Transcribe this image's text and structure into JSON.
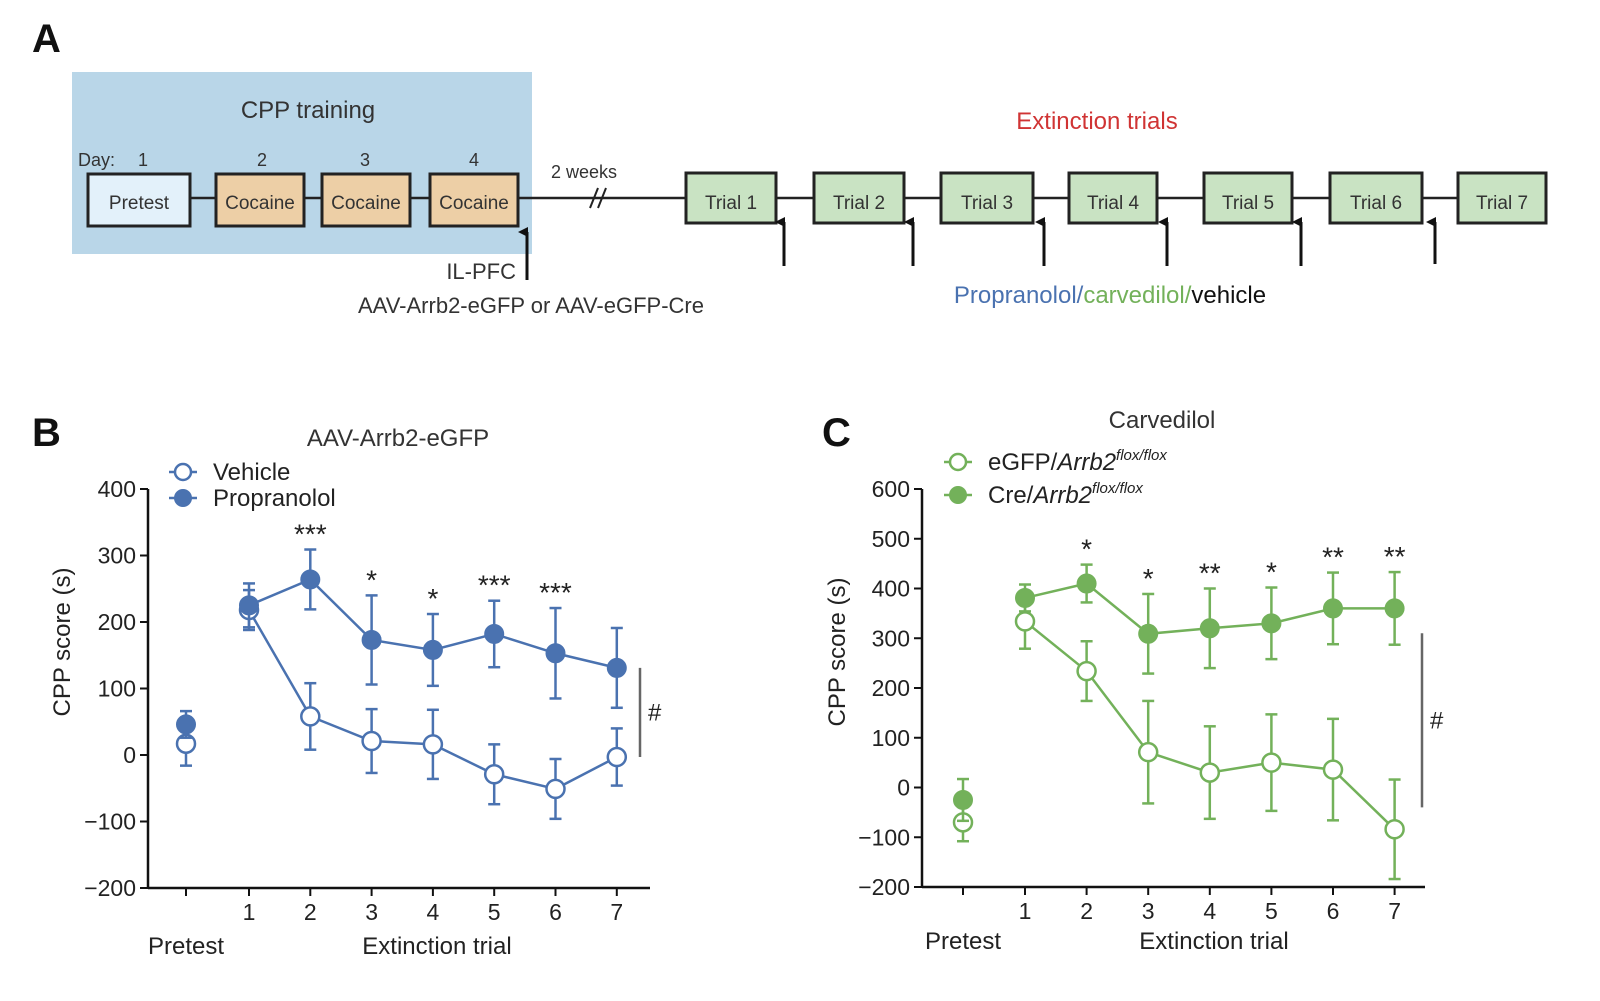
{
  "panel_a": {
    "letter": "A",
    "training_title": "CPP training",
    "day_label": "Day:",
    "days": [
      "1",
      "2",
      "3",
      "4"
    ],
    "boxes": [
      "Pretest",
      "Cocaine",
      "Cocaine",
      "Cocaine"
    ],
    "gap_label": "2 weeks",
    "injection_site": "IL-PFC",
    "injection_vectors": "AAV-Arrb2-eGFP or AAV-eGFP-Cre",
    "extinction_title": "Extinction trials",
    "trials": [
      "Trial 1",
      "Trial 2",
      "Trial 3",
      "Trial 4",
      "Trial 5",
      "Trial 6",
      "Trial 7"
    ],
    "drug_parts": [
      "Propranolol/",
      "carvedilol/",
      "vehicle"
    ],
    "colors": {
      "training_bg": "#b9d6e8",
      "pretest_fill": "#e3f1fa",
      "cocaine_fill": "#edcfa6",
      "trial_fill": "#c9e3c3",
      "extinction_title": "#d03434",
      "propranolol_text": "#4a72b0",
      "carvedilol_text": "#73b15a"
    }
  },
  "chart_data": [
    {
      "type": "line",
      "panel": "B",
      "title": "AAV-Arrb2-eGFP",
      "xlabel": "Extinction trial",
      "pretest_label": "Pretest",
      "ylabel": "CPP score (s)",
      "ylim": [
        -200,
        400
      ],
      "yticks": [
        400,
        300,
        200,
        100,
        0,
        -100,
        -200
      ],
      "ytick_labels": [
        "400",
        "300",
        "200",
        "100",
        "0",
        "−100",
        "−200"
      ],
      "x": [
        1,
        2,
        3,
        4,
        5,
        6,
        7
      ],
      "color": "#4a72b0",
      "series": [
        {
          "name": "Vehicle",
          "filled": false,
          "pretest": 17,
          "pretest_err": 33,
          "values": [
            218,
            58,
            21,
            16,
            -29,
            -51,
            -3
          ],
          "errors": [
            30,
            50,
            48,
            52,
            45,
            45,
            43
          ]
        },
        {
          "name": "Propranolol",
          "filled": true,
          "pretest": 46,
          "pretest_err": 20,
          "values": [
            225,
            264,
            173,
            158,
            182,
            153,
            131
          ],
          "errors": [
            33,
            45,
            67,
            54,
            50,
            68,
            60
          ]
        }
      ],
      "significance": [
        "",
        "***",
        "*",
        "*",
        "***",
        "***",
        ""
      ],
      "bracket_label": "#",
      "bracket_range": [
        -3,
        131
      ]
    },
    {
      "type": "line",
      "panel": "C",
      "title": "Carvedilol",
      "xlabel": "Extinction trial",
      "pretest_label": "Pretest",
      "ylabel": "CPP score (s)",
      "ylim": [
        -200,
        600
      ],
      "yticks": [
        600,
        500,
        400,
        300,
        200,
        100,
        0,
        -100,
        -200
      ],
      "ytick_labels": [
        "600",
        "500",
        "400",
        "300",
        "200",
        "100",
        "0",
        "−100",
        "−200"
      ],
      "x": [
        1,
        2,
        3,
        4,
        5,
        6,
        7
      ],
      "color": "#73b15a",
      "series": [
        {
          "name_prefix": "eGFP/",
          "name_gene": "Arrb2",
          "name_sup": "flox/flox",
          "filled": false,
          "pretest": -70,
          "pretest_err": 38,
          "values": [
            334,
            234,
            71,
            30,
            50,
            36,
            -84
          ],
          "errors": [
            55,
            60,
            103,
            93,
            97,
            102,
            100
          ]
        },
        {
          "name_prefix": "Cre/",
          "name_gene": "Arrb2",
          "name_sup": "flox/flox",
          "filled": true,
          "pretest": -25,
          "pretest_err": 42,
          "values": [
            381,
            410,
            309,
            320,
            330,
            360,
            360
          ],
          "errors": [
            27,
            38,
            80,
            80,
            72,
            72,
            73
          ]
        }
      ],
      "significance": [
        "",
        "*",
        "*",
        "**",
        "*",
        "**",
        "**"
      ],
      "bracket_label": "#",
      "bracket_range": [
        -40,
        310
      ]
    }
  ]
}
